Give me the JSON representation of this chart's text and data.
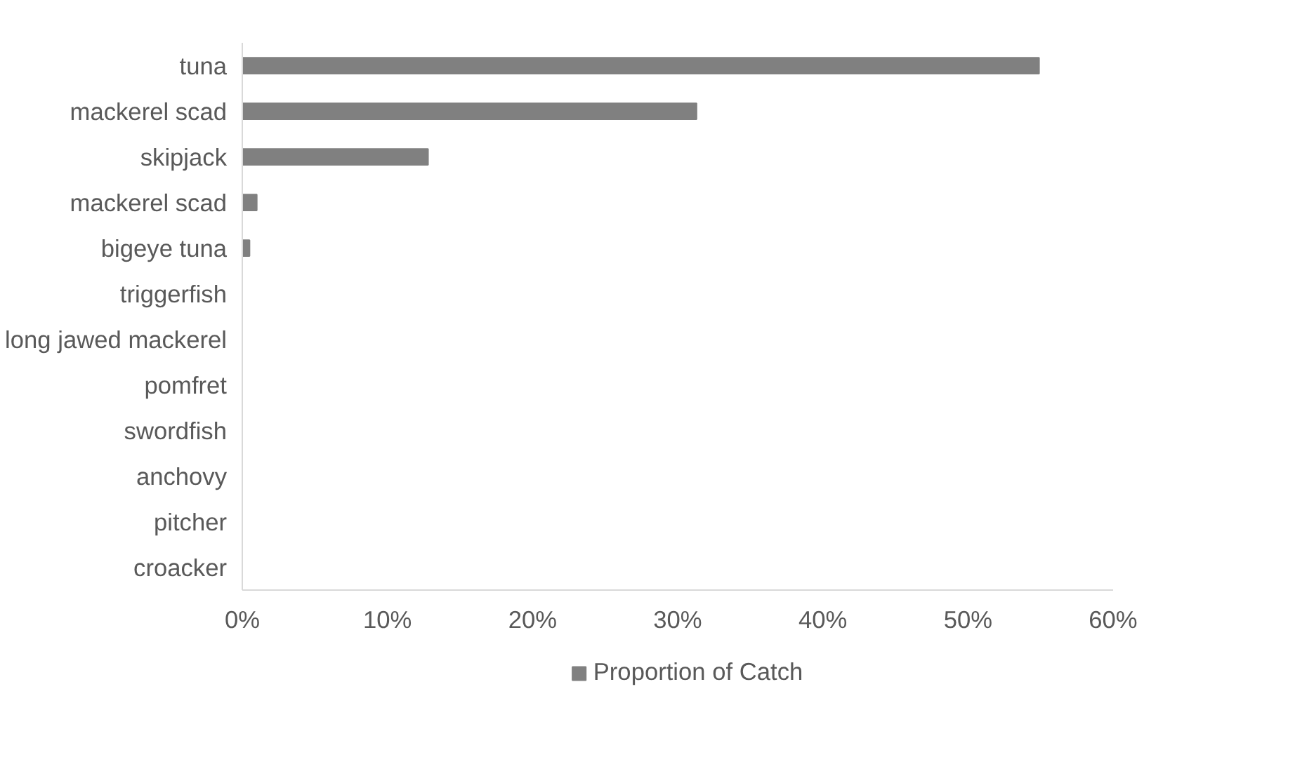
{
  "chart_data": {
    "type": "bar",
    "orientation": "horizontal",
    "categories": [
      "tuna",
      "mackerel scad",
      "skipjack",
      "mackerel scad",
      "bigeye tuna",
      "triggerfish",
      "long jawed mackerel",
      "pomfret",
      "swordfish",
      "anchovy",
      "pitcher",
      "croacker"
    ],
    "series": [
      {
        "name": "Proportion of Catch",
        "color": "#808080",
        "values": [
          54.9,
          31.3,
          12.8,
          1.0,
          0.5,
          0,
          0,
          0,
          0,
          0,
          0,
          0
        ]
      }
    ],
    "xlim": [
      0,
      60
    ],
    "xticks": [
      {
        "value": 0,
        "label": "0%"
      },
      {
        "value": 10,
        "label": "10%"
      },
      {
        "value": 20,
        "label": "20%"
      },
      {
        "value": 30,
        "label": "30%"
      },
      {
        "value": 40,
        "label": "40%"
      },
      {
        "value": 50,
        "label": "50%"
      },
      {
        "value": 60,
        "label": "60%"
      }
    ],
    "grid": false,
    "legend": "bottom"
  }
}
